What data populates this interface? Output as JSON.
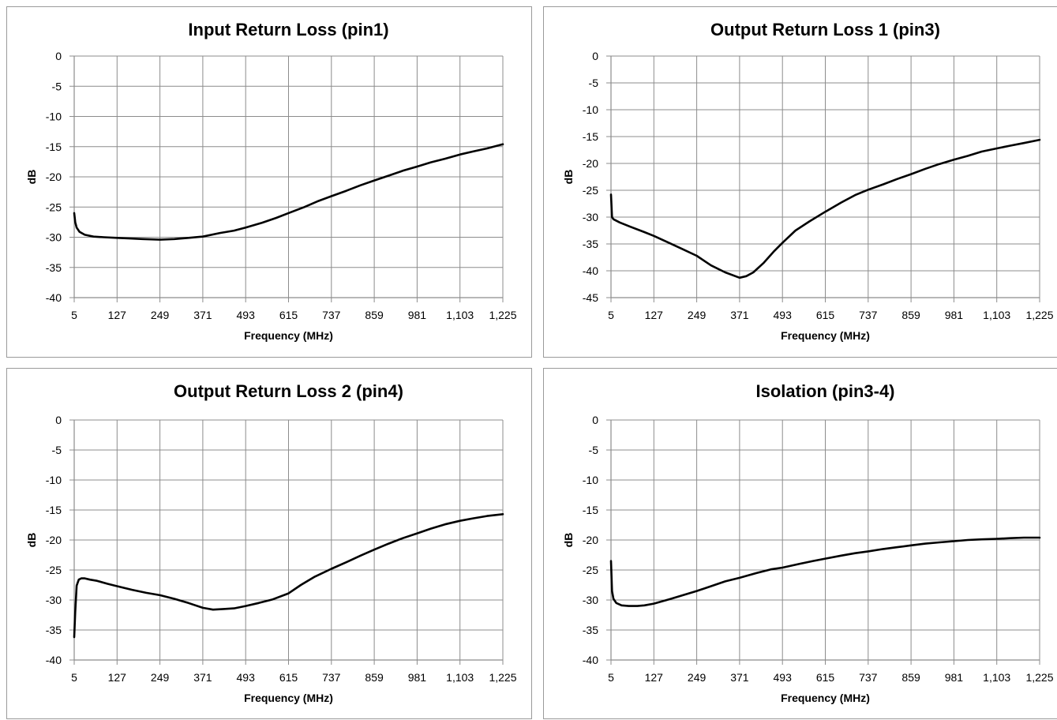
{
  "chart_data": [
    {
      "type": "line",
      "title": "Input Return Loss (pin1)",
      "xlabel": "Frequency (MHz)",
      "ylabel": "dB",
      "xlim": [
        5,
        1225
      ],
      "ylim": [
        -40,
        0
      ],
      "xticks": [
        "5",
        "127",
        "249",
        "371",
        "493",
        "615",
        "737",
        "859",
        "981",
        "1,103",
        "1,225"
      ],
      "yticks": [
        "0",
        "-5",
        "-10",
        "-15",
        "-20",
        "-25",
        "-30",
        "-35",
        "-40"
      ],
      "grid": true,
      "series": [
        {
          "color": "#000000",
          "x": [
            5,
            8,
            12,
            20,
            35,
            60,
            90,
            127,
            160,
            200,
            249,
            290,
            330,
            371,
            420,
            460,
            493,
            540,
            580,
            615,
            660,
            700,
            737,
            780,
            820,
            859,
            900,
            940,
            981,
            1020,
            1060,
            1103,
            1140,
            1180,
            1225
          ],
          "y": [
            -26.0,
            -27.5,
            -28.4,
            -29.1,
            -29.6,
            -29.9,
            -30.0,
            -30.1,
            -30.2,
            -30.3,
            -30.4,
            -30.3,
            -30.1,
            -29.9,
            -29.3,
            -28.9,
            -28.4,
            -27.6,
            -26.8,
            -26.0,
            -25.0,
            -24.0,
            -23.2,
            -22.3,
            -21.4,
            -20.6,
            -19.8,
            -19.0,
            -18.3,
            -17.6,
            -17.0,
            -16.3,
            -15.8,
            -15.3,
            -14.6
          ]
        }
      ]
    },
    {
      "type": "line",
      "title": "Output Return Loss 1 (pin3)",
      "xlabel": "Frequency (MHz)",
      "ylabel": "dB",
      "xlim": [
        5,
        1225
      ],
      "ylim": [
        -45,
        0
      ],
      "xticks": [
        "5",
        "127",
        "249",
        "371",
        "493",
        "615",
        "737",
        "859",
        "981",
        "1,103",
        "1,225"
      ],
      "yticks": [
        "0",
        "-5",
        "-10",
        "-15",
        "-20",
        "-25",
        "-30",
        "-35",
        "-40",
        "-45"
      ],
      "grid": true,
      "series": [
        {
          "color": "#000000",
          "x": [
            5,
            8,
            12,
            30,
            60,
            100,
            127,
            170,
            210,
            249,
            290,
            330,
            371,
            390,
            410,
            440,
            470,
            493,
            530,
            570,
            615,
            660,
            700,
            737,
            780,
            820,
            859,
            900,
            940,
            981,
            1020,
            1060,
            1103,
            1140,
            1180,
            1225
          ],
          "y": [
            -25.8,
            -30.0,
            -30.4,
            -31.0,
            -31.8,
            -32.8,
            -33.5,
            -34.8,
            -36.0,
            -37.2,
            -39.0,
            -40.3,
            -41.3,
            -41.0,
            -40.3,
            -38.5,
            -36.3,
            -34.8,
            -32.5,
            -30.8,
            -29.0,
            -27.3,
            -25.9,
            -24.9,
            -23.9,
            -22.9,
            -22.0,
            -21.0,
            -20.1,
            -19.3,
            -18.6,
            -17.8,
            -17.2,
            -16.7,
            -16.2,
            -15.6
          ]
        }
      ]
    },
    {
      "type": "line",
      "title": "Output Return Loss 2 (pin4)",
      "xlabel": "Frequency (MHz)",
      "ylabel": "dB",
      "xlim": [
        5,
        1225
      ],
      "ylim": [
        -40,
        0
      ],
      "xticks": [
        "5",
        "127",
        "249",
        "371",
        "493",
        "615",
        "737",
        "859",
        "981",
        "1,103",
        "1,225"
      ],
      "yticks": [
        "0",
        "-5",
        "-10",
        "-15",
        "-20",
        "-25",
        "-30",
        "-35",
        "-40"
      ],
      "grid": true,
      "series": [
        {
          "color": "#000000",
          "x": [
            5,
            8,
            12,
            18,
            25,
            35,
            50,
            70,
            100,
            127,
            170,
            210,
            249,
            290,
            330,
            371,
            400,
            430,
            460,
            493,
            530,
            570,
            615,
            650,
            690,
            737,
            780,
            820,
            859,
            900,
            940,
            981,
            1020,
            1060,
            1103,
            1140,
            1180,
            1225
          ],
          "y": [
            -36.2,
            -32.0,
            -27.6,
            -26.6,
            -26.4,
            -26.4,
            -26.6,
            -26.8,
            -27.3,
            -27.7,
            -28.3,
            -28.8,
            -29.2,
            -29.8,
            -30.5,
            -31.3,
            -31.6,
            -31.5,
            -31.4,
            -31.0,
            -30.5,
            -29.9,
            -28.9,
            -27.5,
            -26.1,
            -24.8,
            -23.7,
            -22.6,
            -21.6,
            -20.6,
            -19.7,
            -18.9,
            -18.1,
            -17.4,
            -16.8,
            -16.4,
            -16.0,
            -15.7
          ]
        }
      ]
    },
    {
      "type": "line",
      "title": "Isolation (pin3-4)",
      "xlabel": "Frequency (MHz)",
      "ylabel": "dB",
      "xlim": [
        5,
        1225
      ],
      "ylim": [
        -40,
        0
      ],
      "xticks": [
        "5",
        "127",
        "249",
        "371",
        "493",
        "615",
        "737",
        "859",
        "981",
        "1,103",
        "1,225"
      ],
      "yticks": [
        "0",
        "-5",
        "-10",
        "-15",
        "-20",
        "-25",
        "-30",
        "-35",
        "-40"
      ],
      "grid": true,
      "series": [
        {
          "color": "#000000",
          "x": [
            5,
            8,
            12,
            20,
            35,
            55,
            80,
            100,
            127,
            170,
            210,
            249,
            290,
            330,
            371,
            420,
            460,
            493,
            540,
            580,
            615,
            660,
            700,
            737,
            780,
            820,
            859,
            900,
            940,
            981,
            1020,
            1060,
            1103,
            1140,
            1180,
            1225
          ],
          "y": [
            -23.5,
            -28.5,
            -29.8,
            -30.5,
            -30.9,
            -31.0,
            -31.0,
            -30.9,
            -30.6,
            -29.9,
            -29.2,
            -28.5,
            -27.7,
            -26.9,
            -26.3,
            -25.5,
            -24.9,
            -24.6,
            -24.0,
            -23.5,
            -23.1,
            -22.6,
            -22.2,
            -21.9,
            -21.5,
            -21.2,
            -20.9,
            -20.6,
            -20.4,
            -20.2,
            -20.0,
            -19.9,
            -19.8,
            -19.7,
            -19.6,
            -19.6
          ]
        }
      ]
    }
  ]
}
